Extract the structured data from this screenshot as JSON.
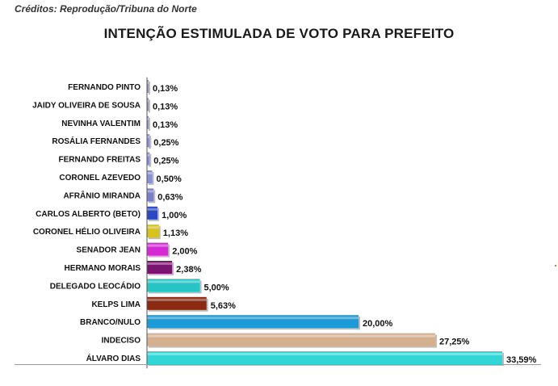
{
  "credits": "Créditos: Reprodução/Tribuna do Norte",
  "chart_data": {
    "type": "bar",
    "orientation": "horizontal",
    "title": "INTENÇÃO ESTIMULADA DE VOTO PARA PREFEITO",
    "xlabel": "",
    "ylabel": "",
    "xlim": [
      0,
      40
    ],
    "grid": false,
    "legend": "none",
    "categories": [
      "FERNANDO PINTO",
      "JAIDY OLIVEIRA DE SOUSA",
      "NEVINHA VALENTIM",
      "ROSÁLIA FERNANDES",
      "FERNANDO FREITAS",
      "CORONEL AZEVEDO",
      "AFRÂNIO MIRANDA",
      "CARLOS ALBERTO (BETO)",
      "CORONEL HÉLIO OLIVEIRA",
      "SENADOR JEAN",
      "HERMANO MORAIS",
      "DELEGADO LEOCÁDIO",
      "KELPS LIMA",
      "BRANCO/NULO",
      "INDECISO",
      "ÁLVARO DIAS"
    ],
    "values": [
      0.13,
      0.13,
      0.13,
      0.25,
      0.25,
      0.5,
      0.63,
      1.0,
      1.13,
      2.0,
      2.38,
      5.0,
      5.63,
      20.0,
      27.25,
      33.59
    ],
    "value_labels": [
      "0,13%",
      "0,13%",
      "0,13%",
      "0,25%",
      "0,25%",
      "0,50%",
      "0,63%",
      "1,00%",
      "1,13%",
      "2,00%",
      "2,38%",
      "5,00%",
      "5,63%",
      "20,00%",
      "27,25%",
      "33,59%"
    ],
    "colors": [
      "#8b8fd6",
      "#8b8fd6",
      "#8b8fd6",
      "#8b8fd6",
      "#8b8fd6",
      "#8b8fd6",
      "#7a7fcc",
      "#2b47c4",
      "#d6c21b",
      "#d62ad6",
      "#7a1470",
      "#27c4c4",
      "#8a2a10",
      "#1a9ad6",
      "#d4b08f",
      "#33d6d6"
    ]
  }
}
